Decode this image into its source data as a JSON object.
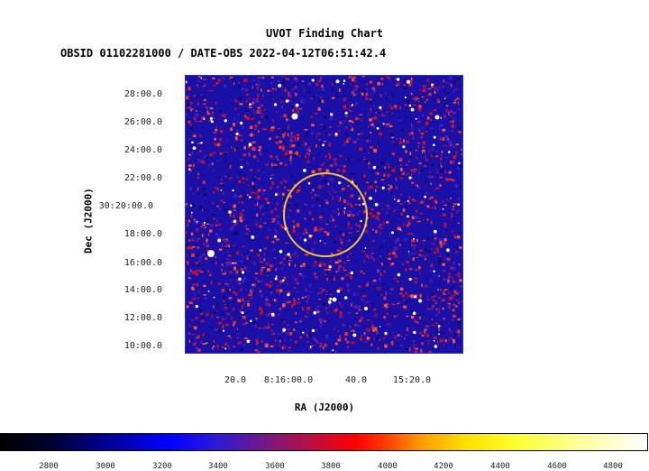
{
  "chart": {
    "title": "UVOT Finding Chart",
    "subtitle": "OBSID 01102281000 / DATE-OBS 2022-04-12T06:51:42.4",
    "xlabel": "RA (J2000)",
    "ylabel": "Dec (J2000)"
  },
  "dec_ticks": [
    "28:00.0",
    "26:00.0",
    "24:00.0",
    "22:00.0",
    "30:20:00.0",
    "18:00.0",
    "16:00.0",
    "14:00.0",
    "12:00.0",
    "10:00.0"
  ],
  "ra_ticks": [
    "20.0",
    "8:16:00.0",
    "40.0",
    "15:20.0"
  ],
  "colorbar_ticks": [
    "2800",
    "3000",
    "3200",
    "3400",
    "3600",
    "3800",
    "4000",
    "4200",
    "4400",
    "4600",
    "4800"
  ],
  "colors": {
    "circle": "#f4c430",
    "frame": "#2233dd"
  }
}
